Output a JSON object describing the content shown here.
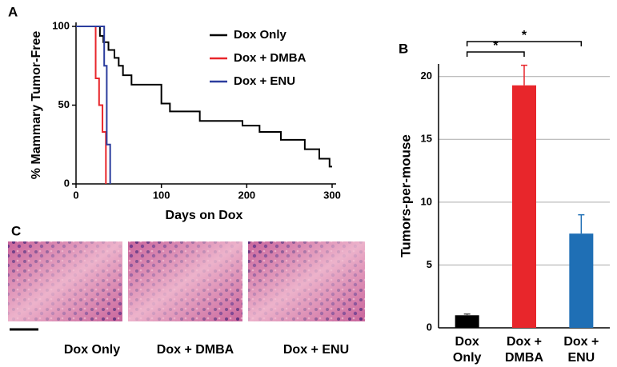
{
  "chart_data": [
    {
      "type": "step",
      "panel_label": "A",
      "xlabel": "Days on Dox",
      "ylabel": "% Mammary Tumor-Free",
      "xlim": [
        0,
        300
      ],
      "xticks": [
        0,
        100,
        200,
        300
      ],
      "ylim": [
        0,
        100
      ],
      "yticks": [
        0,
        50,
        100
      ],
      "legend": "upper right",
      "series": [
        {
          "name": "Dox Only",
          "color": "#000000",
          "x": [
            0,
            28,
            32,
            38,
            45,
            50,
            55,
            65,
            100,
            110,
            145,
            195,
            215,
            240,
            268,
            285,
            297,
            300
          ],
          "values": [
            100,
            94,
            90,
            85,
            80,
            75,
            69,
            63,
            51,
            46,
            40,
            37,
            33,
            28,
            22,
            16,
            11,
            11
          ]
        },
        {
          "name": "Dox + DMBA",
          "color": "#e8262b",
          "x": [
            0,
            23,
            27,
            31,
            35
          ],
          "values": [
            100,
            67,
            50,
            33,
            0
          ]
        },
        {
          "name": "Dox + ENU",
          "color": "#2b3d9e",
          "x": [
            0,
            33,
            36,
            40
          ],
          "values": [
            100,
            75,
            25,
            0
          ]
        }
      ]
    },
    {
      "type": "bar",
      "panel_label": "B",
      "ylabel": "Tumors-per-mouse",
      "categories": [
        [
          "Dox",
          "Only"
        ],
        [
          "Dox +",
          "DMBA"
        ],
        [
          "Dox +",
          "ENU"
        ]
      ],
      "values": [
        1.0,
        19.3,
        7.5
      ],
      "errors": [
        0.1,
        1.6,
        1.5
      ],
      "colors": [
        "#000000",
        "#e8262b",
        "#1f6fb5"
      ],
      "ylim": [
        0,
        21
      ],
      "yticks": [
        0,
        5,
        10,
        15,
        20
      ],
      "grid": true,
      "annotations": [
        "*",
        "*"
      ]
    }
  ],
  "panel_c": {
    "panel_label": "C",
    "captions": [
      "Dox Only",
      "Dox + DMBA",
      "Dox + ENU"
    ]
  }
}
